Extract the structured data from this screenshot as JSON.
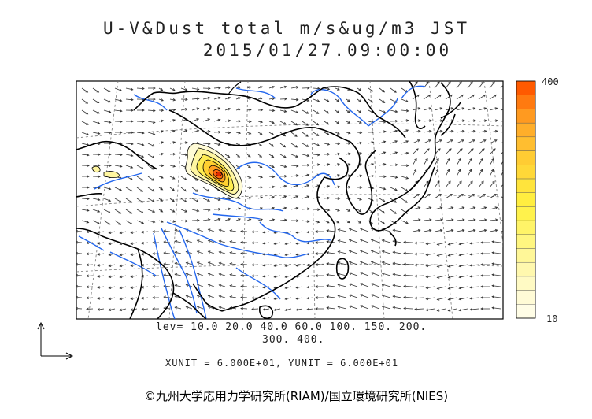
{
  "title_line1": "U-V&Dust total m/s&ug/m3 JST",
  "title_line2": "2015/01/27.09:00:00",
  "colorbar": {
    "max_label": "400",
    "min_label": "10",
    "colors": [
      "#ff5a00",
      "#ff7a10",
      "#ff9a20",
      "#ffae2a",
      "#ffbe30",
      "#ffcc33",
      "#ffd838",
      "#ffe43c",
      "#ffee40",
      "#fff24c",
      "#fff468",
      "#fff680",
      "#fff798",
      "#fff8ae",
      "#fffac4",
      "#fffbd6",
      "#fffde6"
    ]
  },
  "levels_line1": "lev= 10.0 20.0 40.0 60.0 100. 150. 200.",
  "levels_line2": "300. 400.",
  "units_line": "XUNIT = 6.000E+01, YUNIT = 6.000E+01",
  "copyright": "©九州大学応用力学研究所(RIAM)/国立環境研究所(NIES)",
  "colors": {
    "coast": "#000000",
    "river": "#2266ee",
    "grid": "#777777",
    "contour": "#000000"
  },
  "map_region": {
    "lon_range": [
      70,
      150
    ],
    "lat_range": [
      15,
      55
    ]
  },
  "dust_peak_value": 400
}
